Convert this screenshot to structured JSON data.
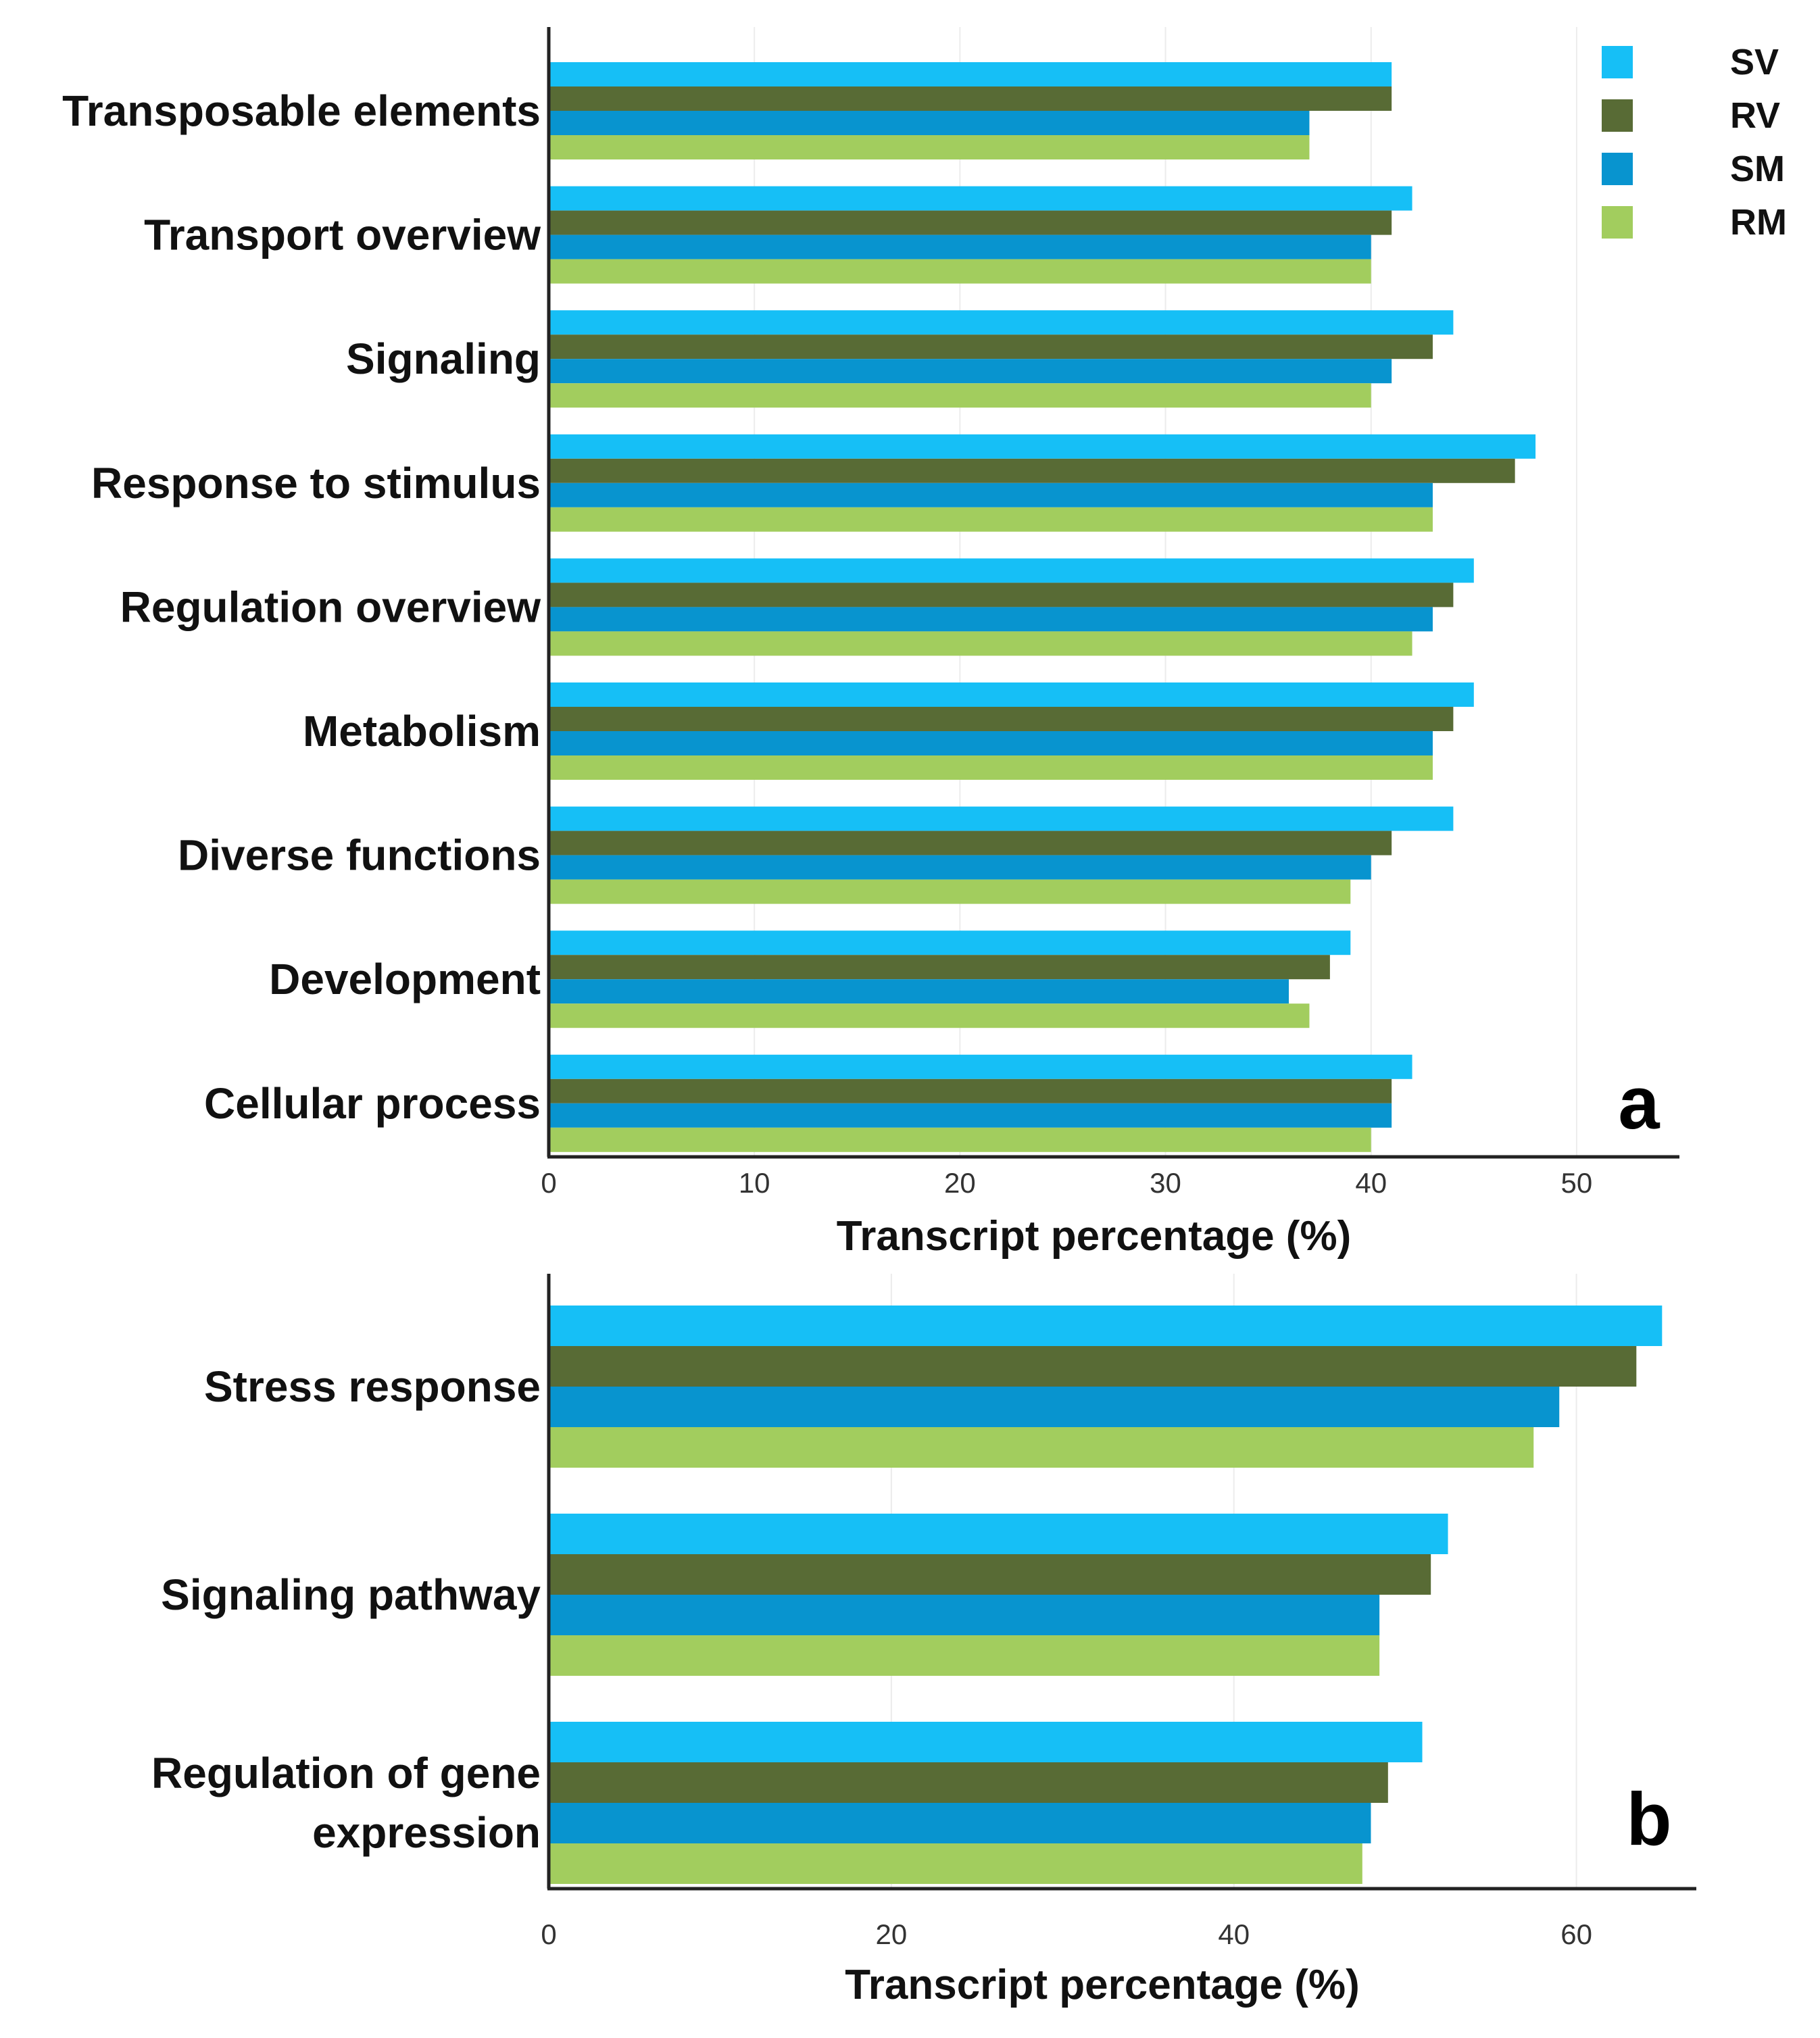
{
  "legend": [
    {
      "name": "SV",
      "color": "#16BFF6"
    },
    {
      "name": "RV",
      "color": "#586B35"
    },
    {
      "name": "SM",
      "color": "#0894CF"
    },
    {
      "name": "RM",
      "color": "#A2CD5E"
    }
  ],
  "chart_data": [
    {
      "type": "bar",
      "orientation": "horizontal",
      "panel_label": "a",
      "title": "",
      "xlabel": "Transcript percentage (%)",
      "ylabel": "",
      "xlim": [
        0,
        55
      ],
      "xticks": [
        0,
        10,
        20,
        30,
        40,
        50
      ],
      "grid": true,
      "categories": [
        "Transposable elements",
        "Transport overview",
        "Signaling",
        "Response to stimulus",
        "Regulation overview",
        "Metabolism",
        "Diverse functions",
        "Development",
        "Cellular process"
      ],
      "series": [
        {
          "name": "SV",
          "values": [
            41,
            42,
            44,
            48,
            45,
            45,
            44,
            39,
            42
          ]
        },
        {
          "name": "RV",
          "values": [
            41,
            41,
            43,
            47,
            44,
            44,
            41,
            38,
            41
          ]
        },
        {
          "name": "SM",
          "values": [
            37,
            40,
            41,
            43,
            43,
            43,
            40,
            36,
            41
          ]
        },
        {
          "name": "RM",
          "values": [
            37,
            40,
            40,
            43,
            42,
            43,
            39,
            37,
            40
          ]
        }
      ]
    },
    {
      "type": "bar",
      "orientation": "horizontal",
      "panel_label": "b",
      "title": "",
      "xlabel": "Transcript percentage (%)",
      "ylabel": "",
      "xlim": [
        0,
        67
      ],
      "xticks": [
        0,
        20,
        40,
        60
      ],
      "grid": true,
      "categories": [
        "Stress response",
        "Signaling pathway",
        "Regulation of gene expression"
      ],
      "category_lines": [
        [
          "Stress response"
        ],
        [
          "Signaling pathway"
        ],
        [
          "Regulation of gene",
          "expression"
        ]
      ],
      "series": [
        {
          "name": "SV",
          "values": [
            65,
            52.5,
            51
          ]
        },
        {
          "name": "RV",
          "values": [
            63.5,
            51.5,
            49
          ]
        },
        {
          "name": "SM",
          "values": [
            59,
            48.5,
            48
          ]
        },
        {
          "name": "RM",
          "values": [
            57.5,
            48.5,
            47.5
          ]
        }
      ]
    }
  ]
}
